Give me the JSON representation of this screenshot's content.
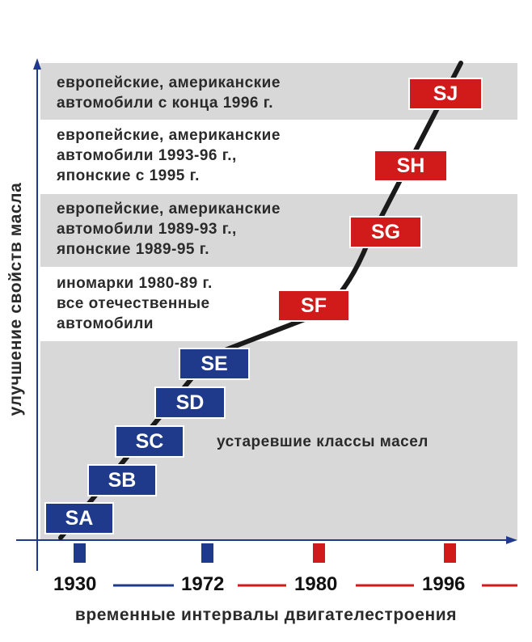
{
  "bands": [
    {
      "lines": [
        "европейские, американские",
        "автомобили с конца 1996 г."
      ],
      "fill": "#d8d8d8"
    },
    {
      "lines": [
        "европейские, американские",
        "автомобили 1993-96 г.,",
        "японские с 1995 г."
      ],
      "fill": "#ffffff"
    },
    {
      "lines": [
        "европейские, американские",
        "автомобили 1989-93 г.,",
        "японские 1989-95 г."
      ],
      "fill": "#d8d8d8"
    },
    {
      "lines": [
        "иномарки 1980-89 г.",
        "все отечественные",
        "автомобили"
      ],
      "fill": "#ffffff"
    },
    {
      "lines": [],
      "fill": "#d8d8d8"
    }
  ],
  "classes": {
    "obsolete": [
      "SA",
      "SB",
      "SC",
      "SD",
      "SE"
    ],
    "current": [
      "SF",
      "SG",
      "SH",
      "SJ"
    ]
  },
  "obsolete_label": "устаревшие классы масел",
  "timeline": [
    "1930",
    "1972",
    "1980",
    "1996"
  ],
  "axis": {
    "x_label": "временные интервалы двигателестроения",
    "y_label": "улучшение свойств масла"
  },
  "colors": {
    "obsolete_class": "#1f3a8a",
    "current_class": "#d11a1a",
    "band_gray": "#d8d8d8",
    "axis": "#1f3a8a"
  }
}
